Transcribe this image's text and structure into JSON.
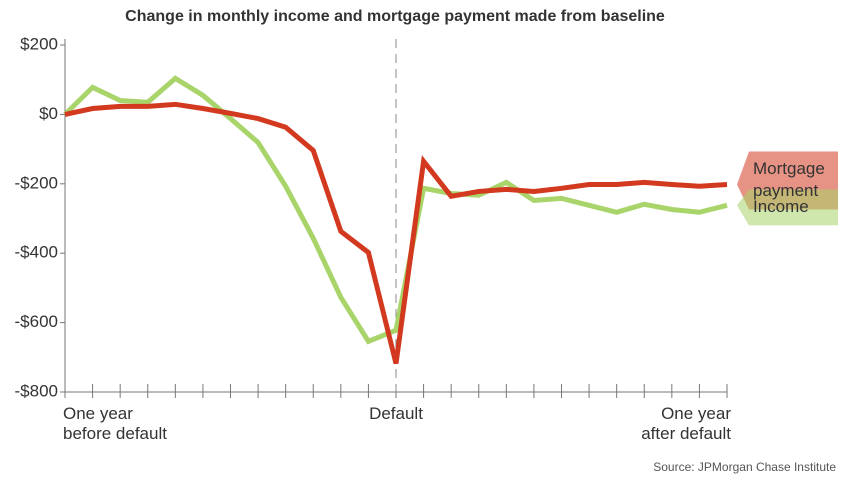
{
  "chart_data": {
    "type": "line",
    "title": "Change in monthly income and mortgage payment made from baseline",
    "source": "Source: JPMorgan Chase Institute",
    "x": [
      -12,
      -11,
      -10,
      -9,
      -8,
      -7,
      -6,
      -5,
      -4,
      -3,
      -2,
      -1,
      0,
      1,
      2,
      3,
      4,
      5,
      6,
      7,
      8,
      9,
      10,
      11,
      12
    ],
    "series": [
      {
        "name": "Mortgage\npayment",
        "color": "#d2391f",
        "values": [
          0,
          17,
          23,
          23,
          29,
          17,
          3,
          -12,
          -37,
          -104,
          -337,
          -398,
          -718,
          -135,
          -236,
          -222,
          -216,
          -222,
          -213,
          -202,
          -202,
          -196,
          -202,
          -207,
          -202
        ]
      },
      {
        "name": "Income",
        "color": "#a8d46a",
        "values": [
          0,
          78,
          40,
          35,
          104,
          55,
          -12,
          -81,
          -207,
          -357,
          -527,
          -654,
          -622,
          -213,
          -228,
          -233,
          -196,
          -248,
          -242,
          -262,
          -282,
          -259,
          -274,
          -282,
          -262
        ]
      }
    ],
    "xlim": [
      -12,
      12
    ],
    "xticks": [
      {
        "value": -12,
        "label": "One year\nbefore default"
      },
      -11,
      -10,
      -9,
      -8,
      -7,
      -6,
      -5,
      -4,
      -3,
      -2,
      -1,
      {
        "value": 0,
        "label": "Default"
      },
      1,
      2,
      3,
      4,
      5,
      6,
      7,
      8,
      9,
      10,
      11,
      {
        "value": 12,
        "label": "One year\nafter default"
      }
    ],
    "ylim": [
      -800,
      200
    ],
    "yticks": [
      {
        "value": 200,
        "label": "$200"
      },
      {
        "value": 0,
        "label": "$0"
      },
      {
        "value": -200,
        "label": "-$200"
      },
      {
        "value": -400,
        "label": "-$400"
      },
      {
        "value": -600,
        "label": "-$600"
      },
      {
        "value": -800,
        "label": "-$800"
      }
    ],
    "grid": false
  }
}
